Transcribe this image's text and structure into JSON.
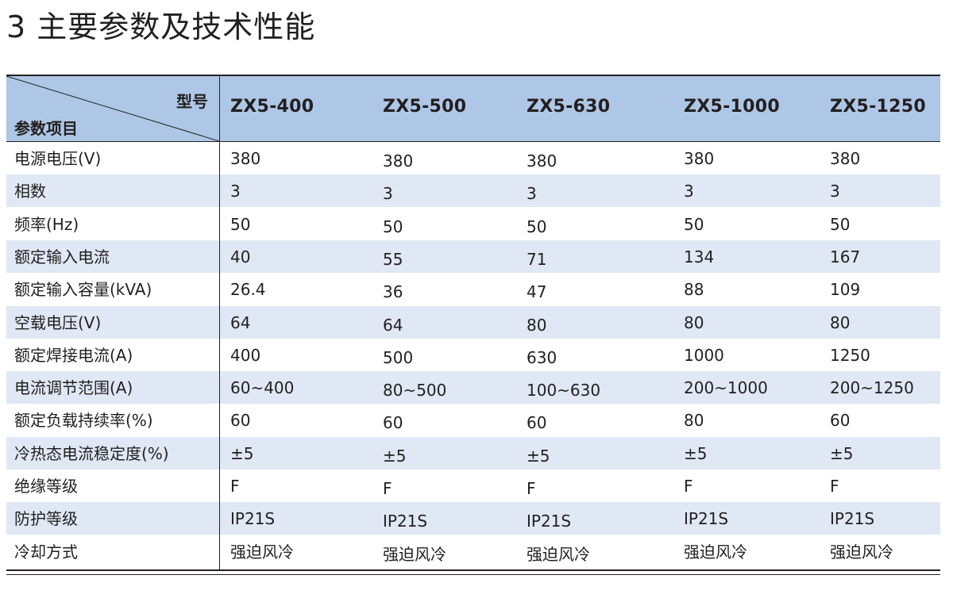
{
  "title": "3 主要参数及技术性能",
  "header": {
    "model_label": "型号",
    "param_label": "参数项目",
    "models": [
      "ZX5-400",
      "ZX5-500",
      "ZX5-630",
      "ZX5-1000",
      "ZX5-1250"
    ]
  },
  "rows": [
    {
      "label": "电源电压(V)",
      "values": [
        "380",
        "380",
        "380",
        "380",
        "380"
      ]
    },
    {
      "label": "相数",
      "values": [
        "3",
        "3",
        "3",
        "3",
        "3"
      ]
    },
    {
      "label": "频率(Hz)",
      "values": [
        "50",
        "50",
        "50",
        "50",
        "50"
      ]
    },
    {
      "label": "额定输入电流",
      "values": [
        "40",
        "55",
        "71",
        "134",
        "167"
      ]
    },
    {
      "label": "额定输入容量(kVA)",
      "values": [
        "26.4",
        "36",
        "47",
        "88",
        "109"
      ]
    },
    {
      "label": "空载电压(V)",
      "values": [
        "64",
        "64",
        "80",
        "80",
        "80"
      ]
    },
    {
      "label": "额定焊接电流(A)",
      "values": [
        "400",
        "500",
        "630",
        "1000",
        "1250"
      ]
    },
    {
      "label": "电流调节范围(A)",
      "values": [
        "60~400",
        "80~500",
        "100~630",
        "200~1000",
        "200~1250"
      ]
    },
    {
      "label": "额定负载持续率(%)",
      "values": [
        "60",
        "60",
        "60",
        "80",
        "60"
      ]
    },
    {
      "label": "冷热态电流稳定度(%)",
      "values": [
        "±5",
        "±5",
        "±5",
        "±5",
        "±5"
      ]
    },
    {
      "label": "绝缘等级",
      "values": [
        "F",
        "F",
        "F",
        "F",
        "F"
      ]
    },
    {
      "label": "防护等级",
      "values": [
        "IP21S",
        "IP21S",
        "IP21S",
        "IP21S",
        "IP21S"
      ]
    },
    {
      "label": "冷却方式",
      "values": [
        "强迫风冷",
        "强迫风冷",
        "强迫风冷",
        "强迫风冷",
        "强迫风冷"
      ]
    }
  ],
  "colors": {
    "header_bg": "#aec7e6",
    "stripe_bg": "#dfe8f4",
    "text": "#231f20"
  }
}
